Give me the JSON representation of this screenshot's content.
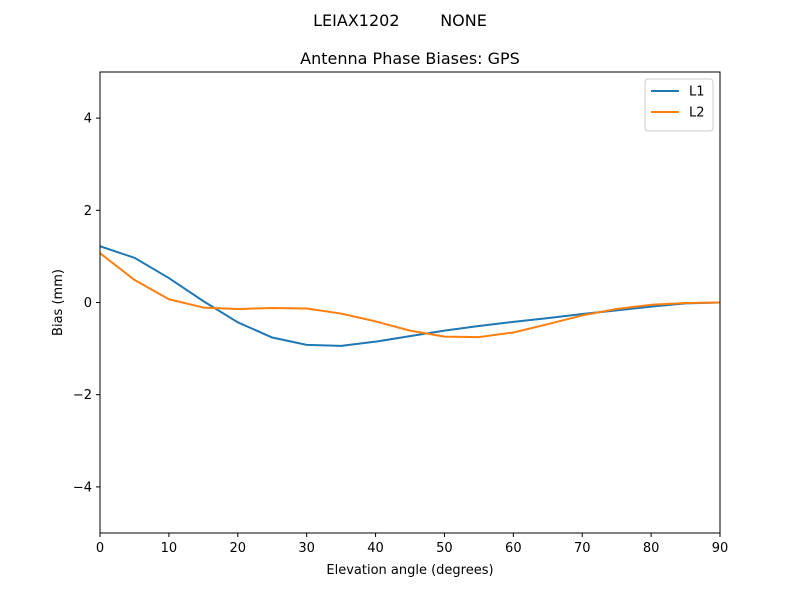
{
  "figure": {
    "suptitle": "LEIAX1202        NONE"
  },
  "chart_data": {
    "type": "line",
    "title": "Antenna Phase Biases: GPS",
    "xlabel": "Elevation angle (degrees)",
    "ylabel": "Bias (mm)",
    "xlim": [
      0,
      90
    ],
    "ylim": [
      -5,
      5
    ],
    "xticks": [
      0,
      10,
      20,
      30,
      40,
      50,
      60,
      70,
      80,
      90
    ],
    "yticks": [
      -4,
      -2,
      0,
      2,
      4
    ],
    "grid": false,
    "legend_position": "top-right",
    "x": [
      0,
      5,
      10,
      15,
      20,
      25,
      30,
      35,
      40,
      45,
      50,
      55,
      60,
      65,
      70,
      75,
      80,
      85,
      90
    ],
    "series": [
      {
        "name": "L1",
        "color": "#1f77b4",
        "values": [
          1.22,
          0.97,
          0.53,
          0.03,
          -0.43,
          -0.76,
          -0.92,
          -0.94,
          -0.85,
          -0.73,
          -0.61,
          -0.51,
          -0.42,
          -0.34,
          -0.25,
          -0.17,
          -0.09,
          -0.02,
          0.0
        ]
      },
      {
        "name": "L2",
        "color": "#ff7f0e",
        "values": [
          1.07,
          0.49,
          0.07,
          -0.11,
          -0.14,
          -0.12,
          -0.13,
          -0.24,
          -0.41,
          -0.61,
          -0.74,
          -0.75,
          -0.65,
          -0.47,
          -0.28,
          -0.14,
          -0.05,
          -0.01,
          0.0
        ]
      }
    ]
  }
}
